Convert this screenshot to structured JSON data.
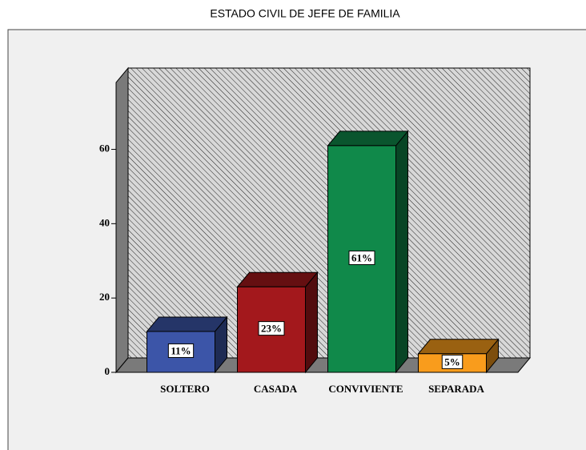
{
  "chart_data": {
    "type": "bar3d",
    "title": "ESTADO CIVIL DE JEFE DE FAMILIA",
    "categories": [
      "SOLTERO",
      "CASADA",
      "CONVIVIENTE",
      "SEPARADA"
    ],
    "values": [
      11,
      23,
      61,
      5
    ],
    "value_labels": [
      "11%",
      "23%",
      "61%",
      "5%"
    ],
    "colors": [
      "#3c55a8",
      "#a3181c",
      "#10894a",
      "#f99c1c"
    ],
    "ylim": [
      0,
      78
    ],
    "yticks": [
      0,
      20,
      40,
      60
    ]
  }
}
